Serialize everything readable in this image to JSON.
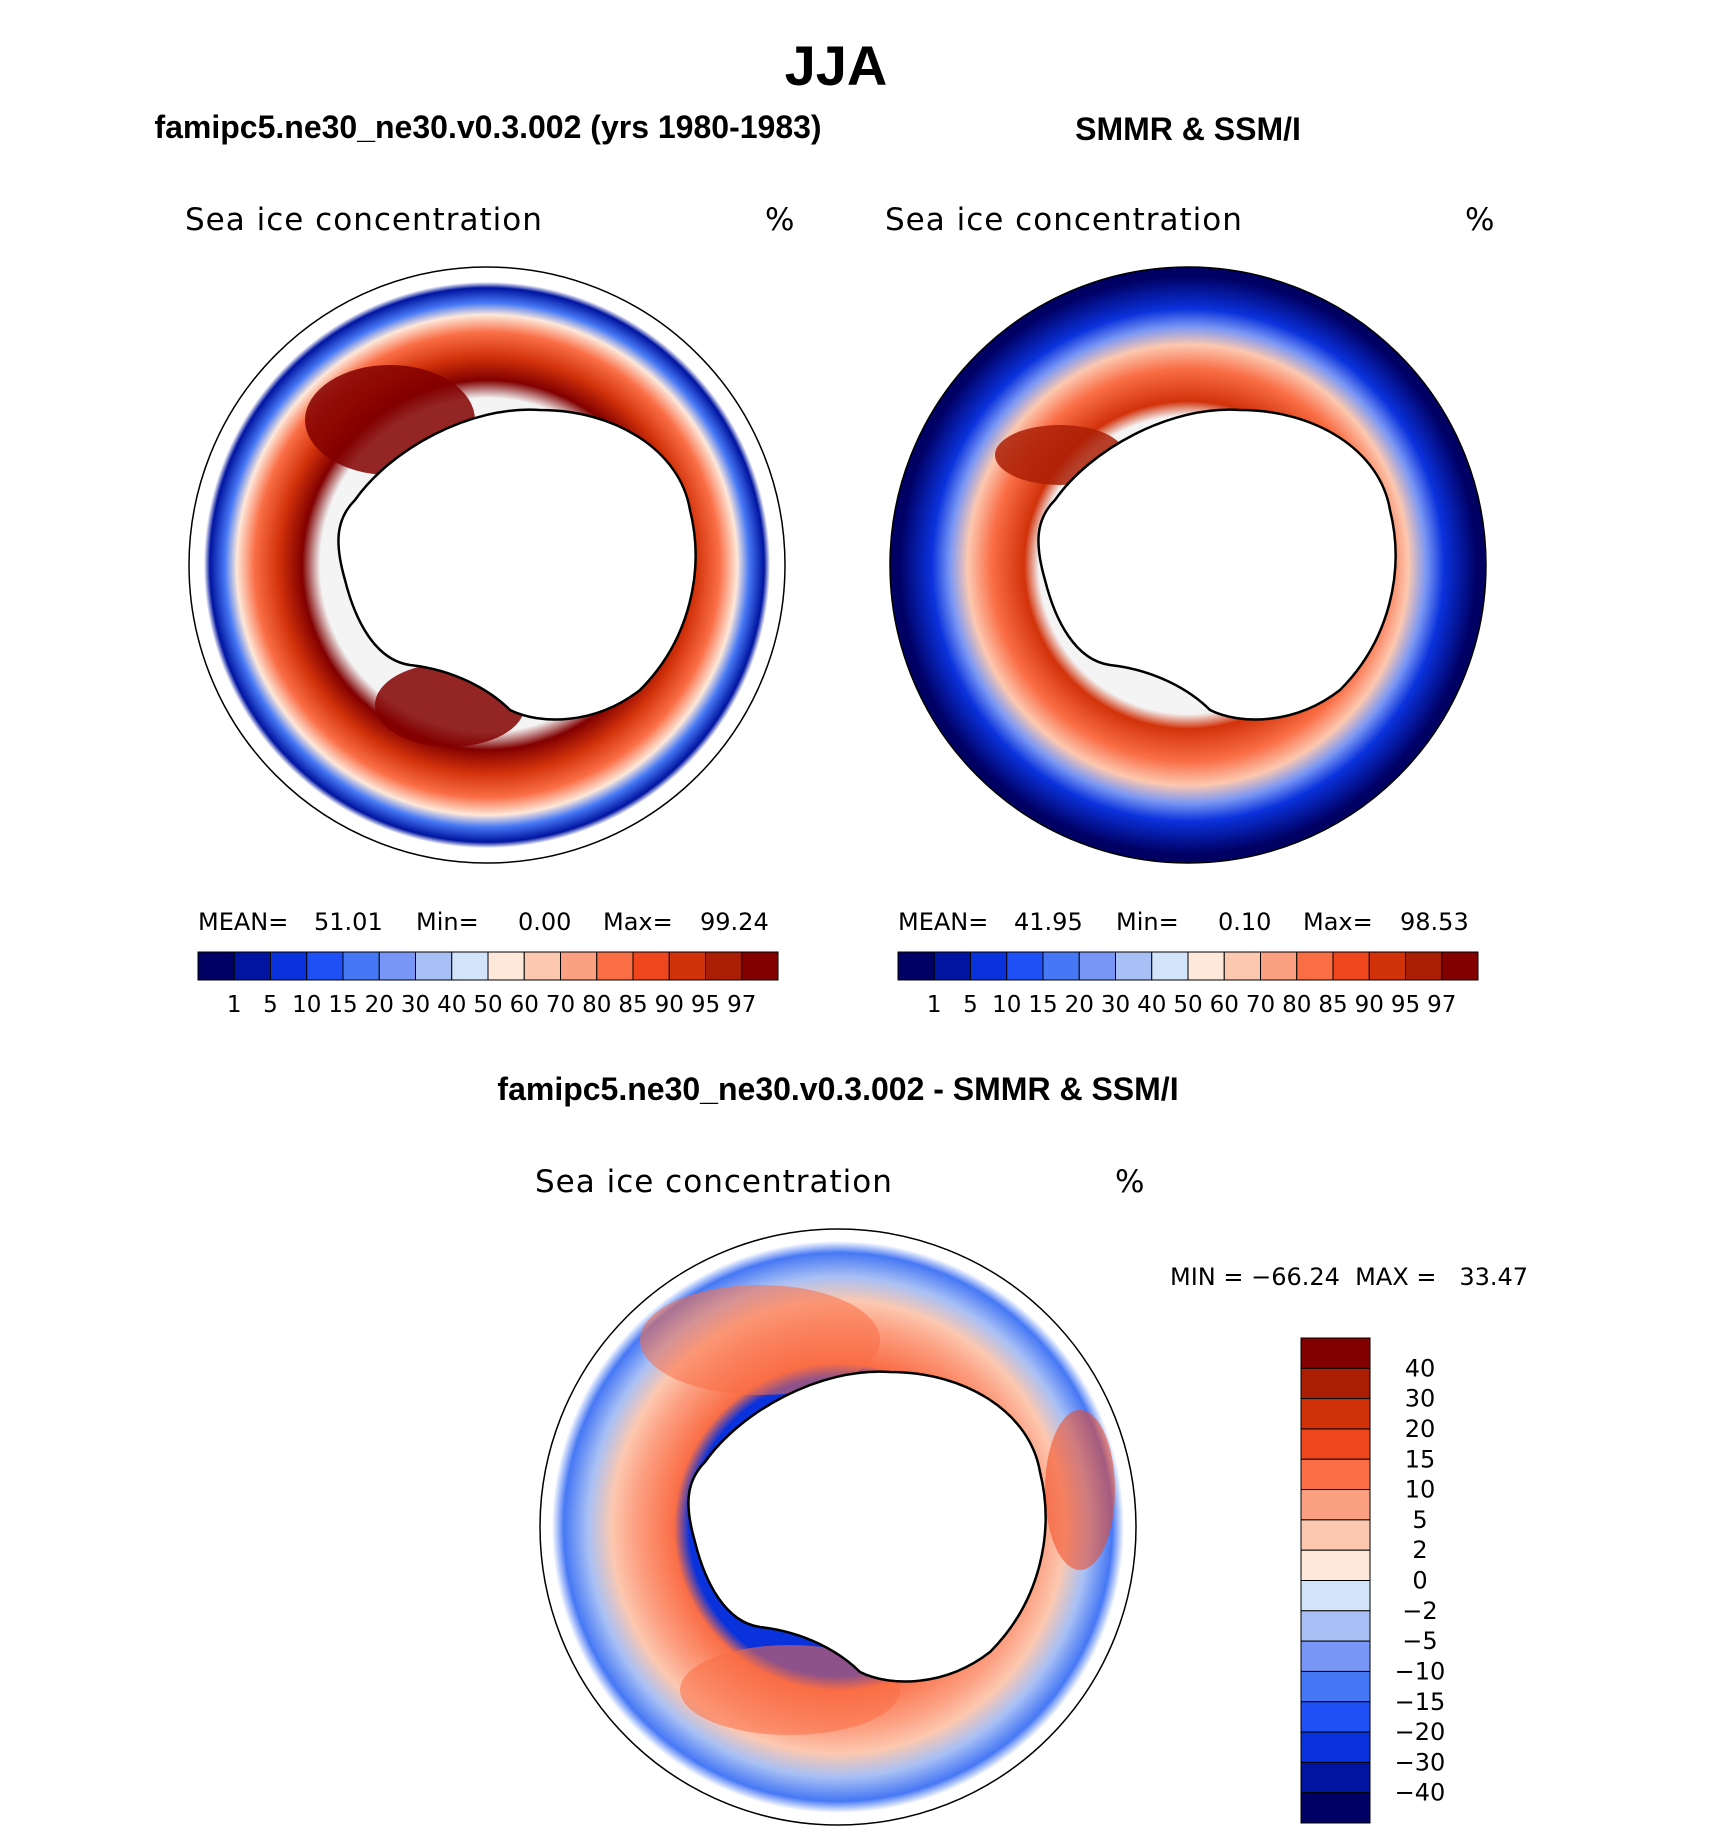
{
  "figure": {
    "season": "JJA",
    "panels": [
      {
        "title": "famipc5.ne30_ne30.v0.3.002 (yrs 1980-1983)",
        "variable": "Sea ice concentration",
        "units": "%",
        "mean_label": "MEAN=",
        "mean": "51.01",
        "min_label": "Min=",
        "min": "0.00",
        "max_label": "Max=",
        "max": "99.24"
      },
      {
        "title": "SMMR & SSM/I",
        "variable": "Sea ice concentration",
        "units": "%",
        "mean_label": "MEAN=",
        "mean": "41.95",
        "min_label": "Min=",
        "min": "0.10",
        "max_label": "Max=",
        "max": "98.53"
      }
    ],
    "diff_panel": {
      "title": "famipc5.ne30_ne30.v0.3.002 - SMMR & SSM/I",
      "variable": "Sea ice concentration",
      "units": "%",
      "minmax": "MIN = −66.24  MAX =   33.47"
    },
    "colorbar_levels": [
      "1",
      "5",
      "10",
      "15",
      "20",
      "30",
      "40",
      "50",
      "60",
      "70",
      "80",
      "85",
      "90",
      "95",
      "97"
    ],
    "colorbar_colors": [
      "#000064",
      "#0014a0",
      "#0a32dc",
      "#1e50f5",
      "#4678f5",
      "#7896f5",
      "#a8c0f5",
      "#d2e4fa",
      "#fde8da",
      "#fcc8b0",
      "#fca082",
      "#fa6e46",
      "#f0461e",
      "#d2320a",
      "#aa1e06",
      "#820000"
    ],
    "diff_levels": [
      "40",
      "30",
      "20",
      "15",
      "10",
      "5",
      "2",
      "0",
      "−2",
      "−5",
      "−10",
      "−15",
      "−20",
      "−30",
      "−40"
    ],
    "diff_colors": [
      "#820000",
      "#aa1e06",
      "#d2320a",
      "#f0461e",
      "#fa6e46",
      "#fca082",
      "#fcc8b0",
      "#fde8da",
      "#d2e4fa",
      "#a8c0f5",
      "#7896f5",
      "#4678f5",
      "#1e50f5",
      "#0a32dc",
      "#0014a0",
      "#000064"
    ]
  }
}
